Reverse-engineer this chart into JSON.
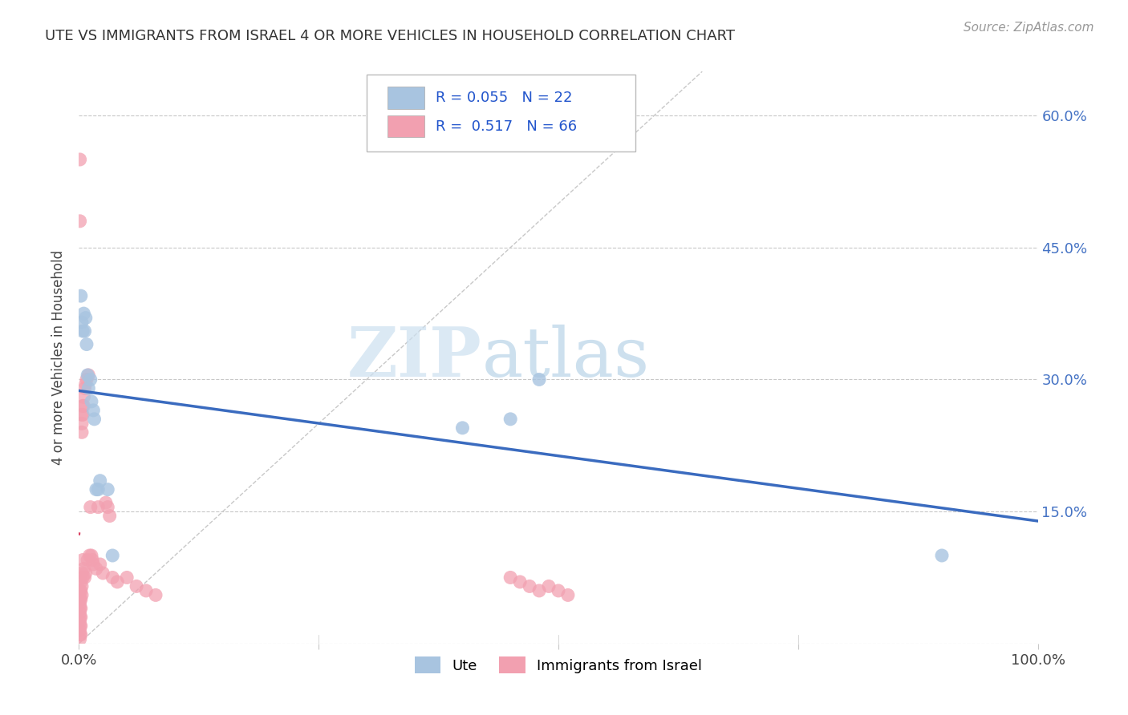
{
  "title": "UTE VS IMMIGRANTS FROM ISRAEL 4 OR MORE VEHICLES IN HOUSEHOLD CORRELATION CHART",
  "source": "Source: ZipAtlas.com",
  "ylabel": "4 or more Vehicles in Household",
  "ute_R": "0.055",
  "ute_N": "22",
  "israel_R": "0.517",
  "israel_N": "66",
  "ute_color": "#a8c4e0",
  "israel_color": "#f2a0b0",
  "ute_line_color": "#3a6bbf",
  "israel_line_color": "#d94060",
  "background_color": "#ffffff",
  "grid_color": "#c8c8c8",
  "watermark_zip": "ZIP",
  "watermark_atlas": "atlas",
  "ute_points": [
    [
      0.002,
      0.395
    ],
    [
      0.003,
      0.365
    ],
    [
      0.004,
      0.355
    ],
    [
      0.005,
      0.375
    ],
    [
      0.006,
      0.355
    ],
    [
      0.007,
      0.37
    ],
    [
      0.008,
      0.34
    ],
    [
      0.009,
      0.305
    ],
    [
      0.01,
      0.29
    ],
    [
      0.012,
      0.3
    ],
    [
      0.013,
      0.275
    ],
    [
      0.015,
      0.265
    ],
    [
      0.016,
      0.255
    ],
    [
      0.018,
      0.175
    ],
    [
      0.02,
      0.175
    ],
    [
      0.022,
      0.185
    ],
    [
      0.03,
      0.175
    ],
    [
      0.035,
      0.1
    ],
    [
      0.4,
      0.245
    ],
    [
      0.45,
      0.255
    ],
    [
      0.9,
      0.1
    ],
    [
      0.48,
      0.3
    ]
  ],
  "israel_points": [
    [
      0.001,
      0.55
    ],
    [
      0.001,
      0.48
    ],
    [
      0.001,
      0.06
    ],
    [
      0.001,
      0.055
    ],
    [
      0.001,
      0.05
    ],
    [
      0.001,
      0.045
    ],
    [
      0.001,
      0.04
    ],
    [
      0.001,
      0.035
    ],
    [
      0.001,
      0.03
    ],
    [
      0.001,
      0.025
    ],
    [
      0.001,
      0.02
    ],
    [
      0.001,
      0.015
    ],
    [
      0.001,
      0.01
    ],
    [
      0.001,
      0.005
    ],
    [
      0.002,
      0.07
    ],
    [
      0.002,
      0.06
    ],
    [
      0.002,
      0.05
    ],
    [
      0.002,
      0.04
    ],
    [
      0.002,
      0.03
    ],
    [
      0.002,
      0.02
    ],
    [
      0.002,
      0.01
    ],
    [
      0.003,
      0.26
    ],
    [
      0.003,
      0.25
    ],
    [
      0.003,
      0.24
    ],
    [
      0.003,
      0.08
    ],
    [
      0.003,
      0.065
    ],
    [
      0.003,
      0.055
    ],
    [
      0.004,
      0.27
    ],
    [
      0.004,
      0.26
    ],
    [
      0.004,
      0.095
    ],
    [
      0.004,
      0.075
    ],
    [
      0.005,
      0.28
    ],
    [
      0.005,
      0.27
    ],
    [
      0.005,
      0.085
    ],
    [
      0.006,
      0.29
    ],
    [
      0.006,
      0.075
    ],
    [
      0.007,
      0.295
    ],
    [
      0.007,
      0.08
    ],
    [
      0.008,
      0.3
    ],
    [
      0.009,
      0.095
    ],
    [
      0.01,
      0.305
    ],
    [
      0.011,
      0.1
    ],
    [
      0.012,
      0.155
    ],
    [
      0.013,
      0.1
    ],
    [
      0.014,
      0.095
    ],
    [
      0.015,
      0.09
    ],
    [
      0.018,
      0.085
    ],
    [
      0.02,
      0.155
    ],
    [
      0.022,
      0.09
    ],
    [
      0.025,
      0.08
    ],
    [
      0.028,
      0.16
    ],
    [
      0.03,
      0.155
    ],
    [
      0.032,
      0.145
    ],
    [
      0.035,
      0.075
    ],
    [
      0.04,
      0.07
    ],
    [
      0.05,
      0.075
    ],
    [
      0.06,
      0.065
    ],
    [
      0.07,
      0.06
    ],
    [
      0.08,
      0.055
    ],
    [
      0.45,
      0.075
    ],
    [
      0.46,
      0.07
    ],
    [
      0.47,
      0.065
    ],
    [
      0.48,
      0.06
    ],
    [
      0.49,
      0.065
    ],
    [
      0.5,
      0.06
    ],
    [
      0.51,
      0.055
    ]
  ],
  "xlim": [
    0.0,
    1.0
  ],
  "ylim": [
    0.0,
    0.65
  ],
  "yticks": [
    0.0,
    0.15,
    0.3,
    0.45,
    0.6
  ],
  "ytick_labels": [
    "",
    "15.0%",
    "30.0%",
    "45.0%",
    "60.0%"
  ]
}
